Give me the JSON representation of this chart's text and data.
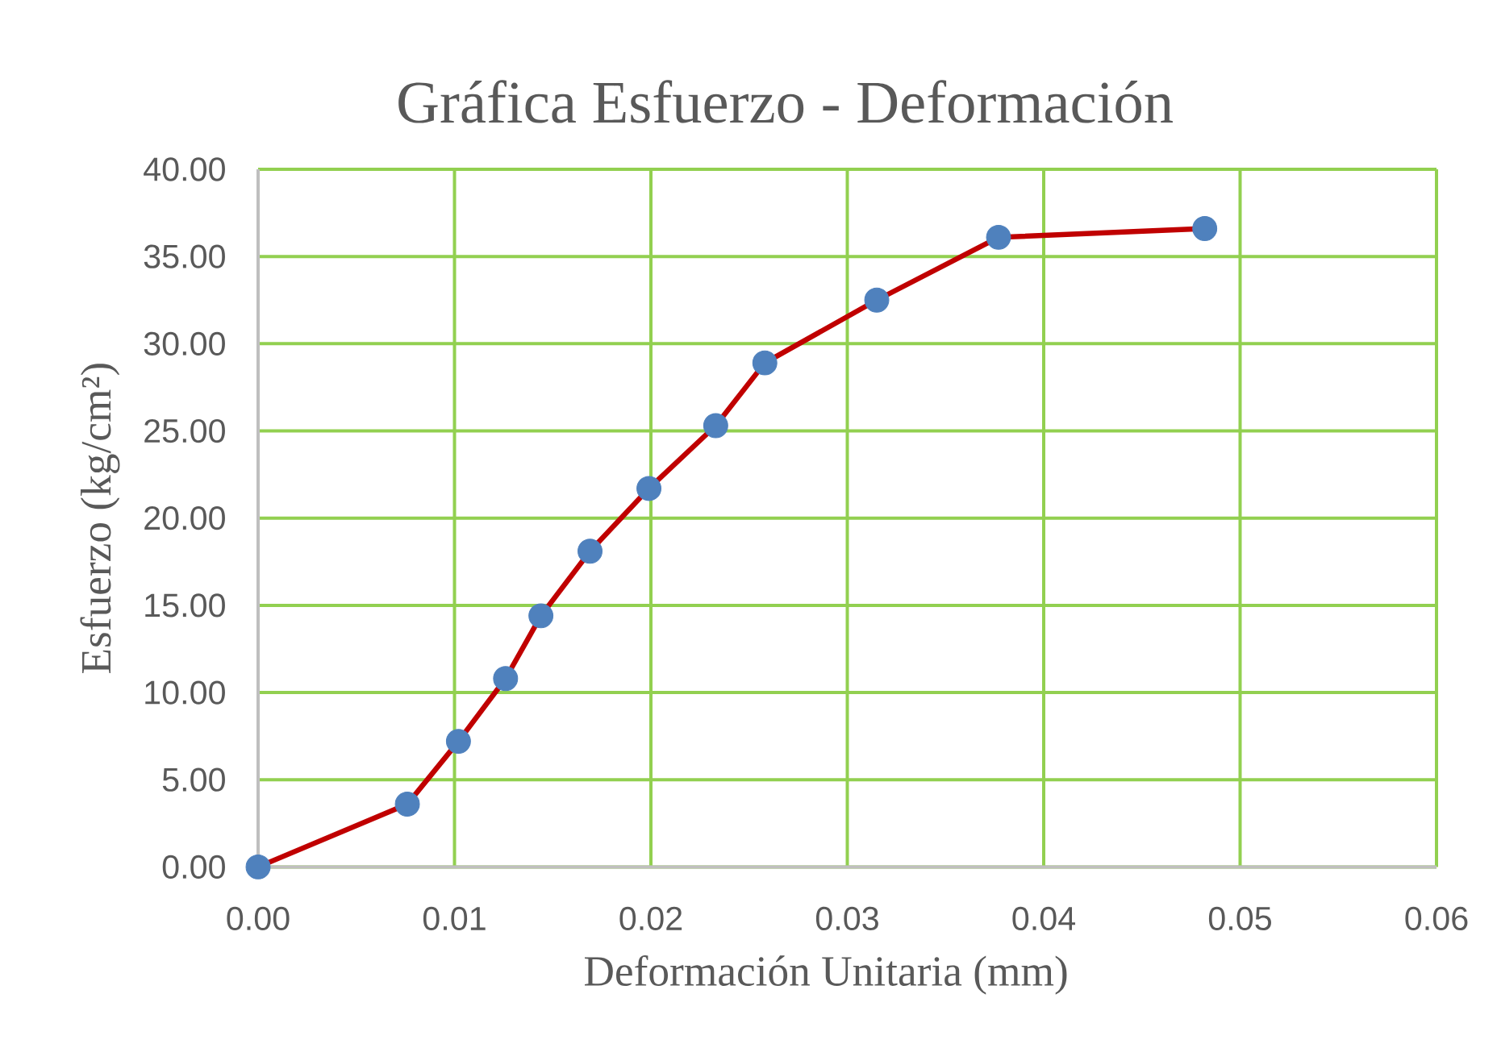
{
  "chart_data": {
    "type": "line",
    "title": "Gráfica Esfuerzo - Deformación",
    "xlabel": "Deformación Unitaria (mm)",
    "ylabel": "Esfuerzo (kg/cm²)",
    "x": [
      0,
      0.0076,
      0.0102,
      0.0126,
      0.0144,
      0.0169,
      0.0199,
      0.0233,
      0.0258,
      0.0315,
      0.0377,
      0.0482
    ],
    "series": [
      {
        "color": "#c00000",
        "colors": [
          "#4f81bd",
          "#4f81bd",
          "#4f81bd",
          "#4f81bd",
          "#4f81bd",
          "#4f81bd",
          "#4f81bd",
          "#4f81bd",
          "#4f81bd",
          "#4f81bd",
          "#4f81bd",
          "#4f81bd"
        ],
        "values": [
          0,
          3.6,
          7.2,
          10.8,
          14.4,
          18.1,
          21.7,
          25.3,
          28.9,
          32.5,
          36.1,
          36.6
        ]
      }
    ],
    "xlim": [
      0,
      0.06
    ],
    "ylim": [
      0,
      40
    ],
    "xticks": [
      {
        "value": 0,
        "label": "0.00"
      },
      {
        "value": 0.01,
        "label": "0.01"
      },
      {
        "value": 0.02,
        "label": "0.02"
      },
      {
        "value": 0.03,
        "label": "0.03"
      },
      {
        "value": 0.04,
        "label": "0.04"
      },
      {
        "value": 0.05,
        "label": "0.05"
      },
      {
        "value": 0.06,
        "label": "0.06"
      }
    ],
    "yticks": [
      {
        "value": 0,
        "label": "0.00"
      },
      {
        "value": 5,
        "label": "5.00"
      },
      {
        "value": 10,
        "label": "10.00"
      },
      {
        "value": 15,
        "label": "15.00"
      },
      {
        "value": 20,
        "label": "20.00"
      },
      {
        "value": 25,
        "label": "25.00"
      },
      {
        "value": 30,
        "label": "30.00"
      },
      {
        "value": 35,
        "label": "35.00"
      },
      {
        "value": 40,
        "label": "40.00"
      }
    ],
    "grid": true,
    "marker": "circle",
    "line_style": "solid"
  }
}
